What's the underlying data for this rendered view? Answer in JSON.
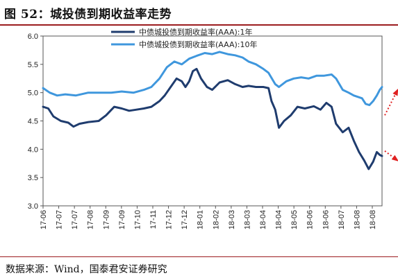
{
  "figure": {
    "title": "图 52：城投债到期收益率走势",
    "source": "数据来源：Wind，国泰君安证券研究"
  },
  "chart_data": {
    "type": "line",
    "title": "",
    "xlabel": "",
    "ylabel": "",
    "ylim": [
      3.0,
      6.0
    ],
    "yticks": [
      "3.0",
      "3.5",
      "4.0",
      "4.5",
      "5.0",
      "5.5",
      "6.0"
    ],
    "xlim": [
      "2017-06-01",
      "2018-09-01"
    ],
    "xticks": [
      "17-06",
      "17-07",
      "17-07",
      "17-08",
      "17-09",
      "17-09",
      "17-10",
      "17-11",
      "17-12",
      "17-12",
      "18-01",
      "18-02",
      "18-03",
      "18-03",
      "18-04",
      "18-04",
      "18-05",
      "18-06",
      "18-06",
      "18-07",
      "18-08",
      "18-08"
    ],
    "grid": false,
    "legend_position": "top-center",
    "series": [
      {
        "name": "中债城投债到期收益率(AAA):1年",
        "color": "#1f3c6e",
        "points": [
          [
            "2017-06-01",
            4.75
          ],
          [
            "2017-06-08",
            4.72
          ],
          [
            "2017-06-15",
            4.58
          ],
          [
            "2017-06-25",
            4.5
          ],
          [
            "2017-07-05",
            4.47
          ],
          [
            "2017-07-12",
            4.4
          ],
          [
            "2017-07-20",
            4.45
          ],
          [
            "2017-08-01",
            4.48
          ],
          [
            "2017-08-15",
            4.5
          ],
          [
            "2017-08-25",
            4.6
          ],
          [
            "2017-09-05",
            4.75
          ],
          [
            "2017-09-15",
            4.72
          ],
          [
            "2017-09-25",
            4.68
          ],
          [
            "2017-10-05",
            4.7
          ],
          [
            "2017-10-15",
            4.72
          ],
          [
            "2017-10-25",
            4.75
          ],
          [
            "2017-11-05",
            4.85
          ],
          [
            "2017-11-12",
            4.95
          ],
          [
            "2017-11-20",
            5.1
          ],
          [
            "2017-11-28",
            5.25
          ],
          [
            "2017-12-05",
            5.2
          ],
          [
            "2017-12-10",
            5.1
          ],
          [
            "2017-12-15",
            5.2
          ],
          [
            "2017-12-20",
            5.38
          ],
          [
            "2017-12-25",
            5.42
          ],
          [
            "2017-12-31",
            5.25
          ],
          [
            "2018-01-08",
            5.1
          ],
          [
            "2018-01-15",
            5.05
          ],
          [
            "2018-01-25",
            5.18
          ],
          [
            "2018-02-05",
            5.22
          ],
          [
            "2018-02-15",
            5.15
          ],
          [
            "2018-02-25",
            5.1
          ],
          [
            "2018-03-05",
            5.12
          ],
          [
            "2018-03-15",
            5.1
          ],
          [
            "2018-03-25",
            5.1
          ],
          [
            "2018-04-01",
            5.08
          ],
          [
            "2018-04-05",
            4.85
          ],
          [
            "2018-04-10",
            4.7
          ],
          [
            "2018-04-15",
            4.38
          ],
          [
            "2018-04-22",
            4.5
          ],
          [
            "2018-05-01",
            4.6
          ],
          [
            "2018-05-10",
            4.75
          ],
          [
            "2018-05-20",
            4.72
          ],
          [
            "2018-06-01",
            4.76
          ],
          [
            "2018-06-10",
            4.7
          ],
          [
            "2018-06-18",
            4.82
          ],
          [
            "2018-06-25",
            4.75
          ],
          [
            "2018-07-01",
            4.45
          ],
          [
            "2018-07-10",
            4.3
          ],
          [
            "2018-07-18",
            4.38
          ],
          [
            "2018-07-25",
            4.15
          ],
          [
            "2018-08-01",
            3.95
          ],
          [
            "2018-08-08",
            3.8
          ],
          [
            "2018-08-14",
            3.65
          ],
          [
            "2018-08-20",
            3.78
          ],
          [
            "2018-08-25",
            3.95
          ],
          [
            "2018-08-29",
            3.9
          ],
          [
            "2018-09-01",
            3.88
          ]
        ]
      },
      {
        "name": "中债城投债到期收益率(AAA):10年",
        "color": "#3f97dd",
        "points": [
          [
            "2017-06-01",
            5.08
          ],
          [
            "2017-06-10",
            5.0
          ],
          [
            "2017-06-20",
            4.95
          ],
          [
            "2017-07-01",
            4.97
          ],
          [
            "2017-07-15",
            4.95
          ],
          [
            "2017-08-01",
            5.0
          ],
          [
            "2017-08-15",
            5.0
          ],
          [
            "2017-09-01",
            5.0
          ],
          [
            "2017-09-15",
            5.02
          ],
          [
            "2017-10-01",
            5.0
          ],
          [
            "2017-10-15",
            5.05
          ],
          [
            "2017-10-25",
            5.1
          ],
          [
            "2017-11-05",
            5.25
          ],
          [
            "2017-11-15",
            5.45
          ],
          [
            "2017-11-25",
            5.55
          ],
          [
            "2017-12-05",
            5.5
          ],
          [
            "2017-12-15",
            5.6
          ],
          [
            "2017-12-25",
            5.65
          ],
          [
            "2018-01-05",
            5.7
          ],
          [
            "2018-01-15",
            5.68
          ],
          [
            "2018-01-25",
            5.72
          ],
          [
            "2018-02-05",
            5.68
          ],
          [
            "2018-02-15",
            5.66
          ],
          [
            "2018-02-25",
            5.62
          ],
          [
            "2018-03-05",
            5.55
          ],
          [
            "2018-03-15",
            5.5
          ],
          [
            "2018-03-25",
            5.42
          ],
          [
            "2018-04-01",
            5.35
          ],
          [
            "2018-04-10",
            5.15
          ],
          [
            "2018-04-15",
            5.1
          ],
          [
            "2018-04-25",
            5.2
          ],
          [
            "2018-05-05",
            5.25
          ],
          [
            "2018-05-15",
            5.27
          ],
          [
            "2018-05-25",
            5.25
          ],
          [
            "2018-06-05",
            5.3
          ],
          [
            "2018-06-15",
            5.3
          ],
          [
            "2018-06-25",
            5.32
          ],
          [
            "2018-07-01",
            5.25
          ],
          [
            "2018-07-10",
            5.05
          ],
          [
            "2018-07-18",
            5.0
          ],
          [
            "2018-07-25",
            4.95
          ],
          [
            "2018-08-05",
            4.9
          ],
          [
            "2018-08-10",
            4.8
          ],
          [
            "2018-08-15",
            4.78
          ],
          [
            "2018-08-20",
            4.85
          ],
          [
            "2018-08-25",
            4.95
          ],
          [
            "2018-08-29",
            5.05
          ],
          [
            "2018-09-01",
            5.1
          ]
        ]
      }
    ],
    "annotations": [
      {
        "kind": "arrow",
        "color": "#e02020",
        "style": "dotted",
        "from": [
          "2018-09-01",
          4.6
        ],
        "to": [
          "2018-09-22",
          5.05
        ]
      },
      {
        "kind": "arrow",
        "color": "#e02020",
        "style": "dotted",
        "from": [
          "2018-09-01",
          3.97
        ],
        "to": [
          "2018-09-22",
          3.8
        ]
      }
    ]
  }
}
